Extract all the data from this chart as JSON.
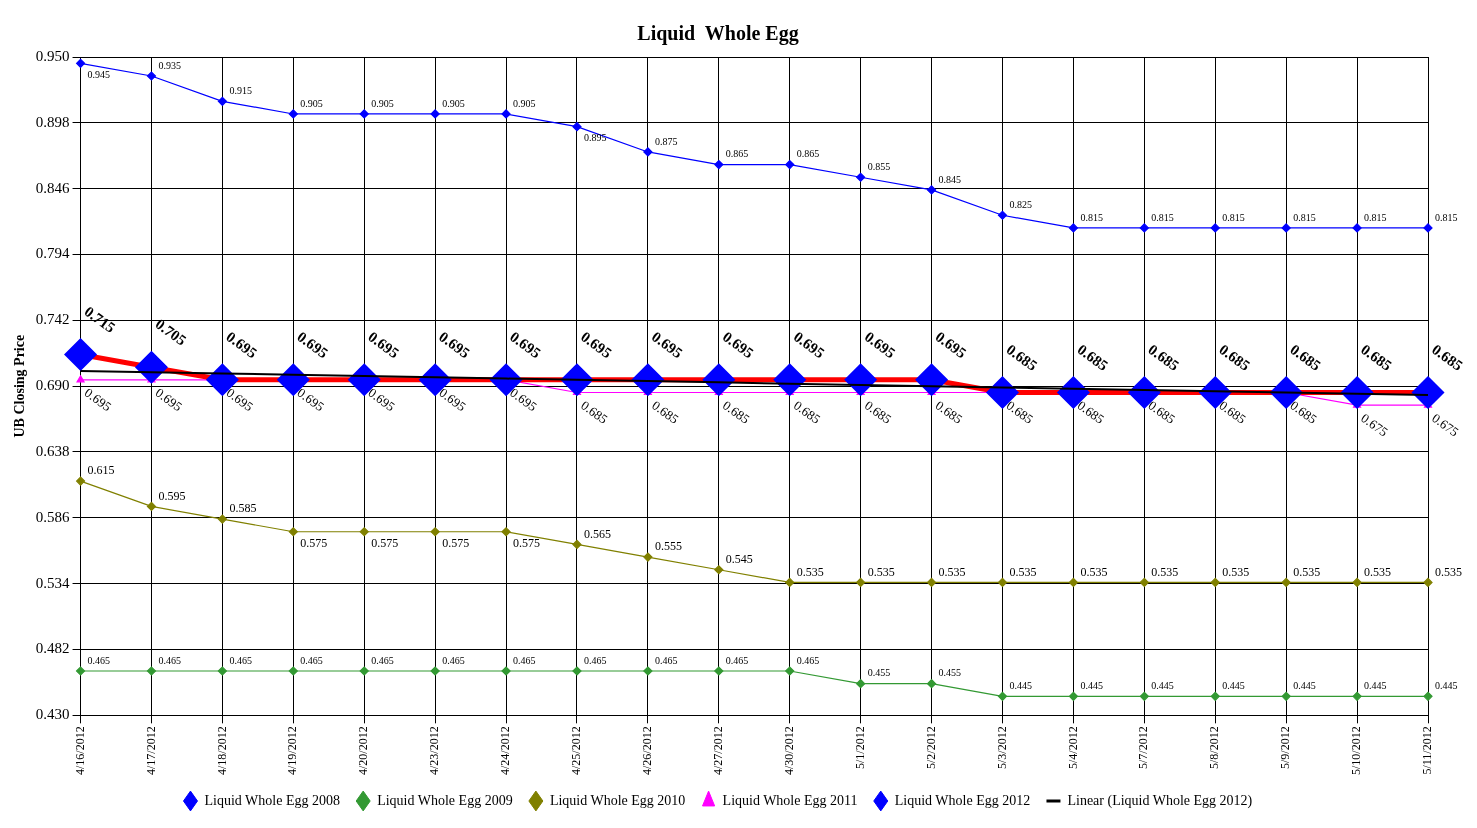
{
  "chart_data": {
    "type": "line",
    "title": "Liquid  Whole Egg",
    "ylabel": "UB Closing Price",
    "categories": [
      "4/16/2012",
      "4/17/2012",
      "4/18/2012",
      "4/19/2012",
      "4/20/2012",
      "4/23/2012",
      "4/24/2012",
      "4/25/2012",
      "4/26/2012",
      "4/27/2012",
      "4/30/2012",
      "5/1/2012",
      "5/2/2012",
      "5/3/2012",
      "5/4/2012",
      "5/7/2012",
      "5/8/2012",
      "5/9/2012",
      "5/10/2012",
      "5/11/2012"
    ],
    "series": [
      {
        "name": "Liquid Whole Egg 2008",
        "color": "#0000ff",
        "marker": "diamond",
        "values": [
          0.945,
          0.935,
          0.915,
          0.905,
          0.905,
          0.905,
          0.905,
          0.895,
          0.875,
          0.865,
          0.865,
          0.855,
          0.845,
          0.825,
          0.815,
          0.815,
          0.815,
          0.815,
          0.815,
          0.815
        ],
        "value_labels": [
          "0.945",
          "0.935",
          "0.915",
          "0.905",
          "0.905",
          "0.905",
          "0.905",
          "0.895",
          "0.875",
          "0.865",
          "0.865",
          "0.855",
          "0.845",
          "0.825",
          "0.815",
          "0.815",
          "0.815",
          "0.815",
          "0.815",
          "0.815"
        ]
      },
      {
        "name": "Liquid Whole Egg 2009",
        "color": "#339933",
        "marker": "diamond",
        "values": [
          0.465,
          0.465,
          0.465,
          0.465,
          0.465,
          0.465,
          0.465,
          0.465,
          0.465,
          0.465,
          0.465,
          0.455,
          0.455,
          0.445,
          0.445,
          0.445,
          0.445,
          0.445,
          0.445,
          0.445
        ],
        "value_labels": [
          "0.465",
          "0.465",
          "0.465",
          "0.465",
          "0.465",
          "0.465",
          "0.465",
          "0.465",
          "0.465",
          "0.465",
          "0.465",
          "0.455",
          "0.455",
          "0.445",
          "0.445",
          "0.445",
          "0.445",
          "0.445",
          "0.445",
          "0.445"
        ]
      },
      {
        "name": "Liquid Whole Egg 2010",
        "color": "#808000",
        "marker": "diamond",
        "values": [
          0.615,
          0.595,
          0.585,
          0.575,
          0.575,
          0.575,
          0.575,
          0.565,
          0.555,
          0.545,
          0.535,
          0.535,
          0.535,
          0.535,
          0.535,
          0.535,
          0.535,
          0.535,
          0.535,
          0.535
        ],
        "value_labels": [
          "0.615",
          "0.595",
          "0.585",
          "0.575",
          "0.575",
          "0.575",
          "0.575",
          "0.565",
          "0.555",
          "0.545",
          "0.535",
          "0.535",
          "0.535",
          "0.535",
          "0.535",
          "0.535",
          "0.535",
          "0.535",
          "0.535",
          "0.535"
        ]
      },
      {
        "name": "Liquid Whole Egg 2011",
        "color": "#ff00ff",
        "marker": "triangle",
        "values": [
          0.695,
          0.695,
          0.695,
          0.695,
          0.695,
          0.695,
          0.695,
          0.685,
          0.685,
          0.685,
          0.685,
          0.685,
          0.685,
          0.685,
          0.685,
          0.685,
          0.685,
          0.685,
          0.675,
          0.675
        ],
        "value_labels": [
          "0.695",
          "0.695",
          "0.695",
          "0.695",
          "0.695",
          "0.695",
          "0.695",
          "0.685",
          "0.685",
          "0.685",
          "0.685",
          "0.685",
          "0.685",
          "0.685",
          "0.685",
          "0.685",
          "0.685",
          "0.685",
          "0.675",
          "0.675"
        ]
      },
      {
        "name": "Liquid Whole Egg 2012",
        "color": "#ff0000",
        "marker": "diamond",
        "values": [
          0.715,
          0.705,
          0.695,
          0.695,
          0.695,
          0.695,
          0.695,
          0.695,
          0.695,
          0.695,
          0.695,
          0.695,
          0.695,
          0.685,
          0.685,
          0.685,
          0.685,
          0.685,
          0.685,
          0.685
        ],
        "value_labels": [
          "0.715",
          "0.705",
          "0.695",
          "0.695",
          "0.695",
          "0.695",
          "0.695",
          "0.695",
          "0.695",
          "0.695",
          "0.695",
          "0.695",
          "0.695",
          "0.685",
          "0.685",
          "0.685",
          "0.685",
          "0.685",
          "0.685",
          "0.685"
        ]
      },
      {
        "name": "Linear (Liquid Whole Egg 2012)",
        "color": "#000000",
        "marker": "none",
        "values": [
          0.702,
          0.701,
          0.7,
          0.699,
          0.698,
          0.697,
          0.696,
          0.695,
          0.694,
          0.693,
          0.692,
          0.691,
          0.69,
          0.689,
          0.688,
          0.687,
          0.686,
          0.685,
          0.684,
          0.683
        ]
      }
    ],
    "ylim": [
      0.43,
      0.95
    ],
    "yticks": [
      {
        "value": 0.43,
        "label": "0.430"
      },
      {
        "value": 0.482,
        "label": "0.482"
      },
      {
        "value": 0.534,
        "label": "0.534"
      },
      {
        "value": 0.586,
        "label": "0.586"
      },
      {
        "value": 0.638,
        "label": "0.638"
      },
      {
        "value": 0.69,
        "label": "0.690"
      },
      {
        "value": 0.742,
        "label": "0.742"
      },
      {
        "value": 0.794,
        "label": "0.794"
      },
      {
        "value": 0.846,
        "label": "0.846"
      },
      {
        "value": 0.898,
        "label": "0.898"
      },
      {
        "value": 0.95,
        "label": "0.950"
      }
    ],
    "grid": true,
    "legend": "bottom",
    "line_style": "solid"
  }
}
